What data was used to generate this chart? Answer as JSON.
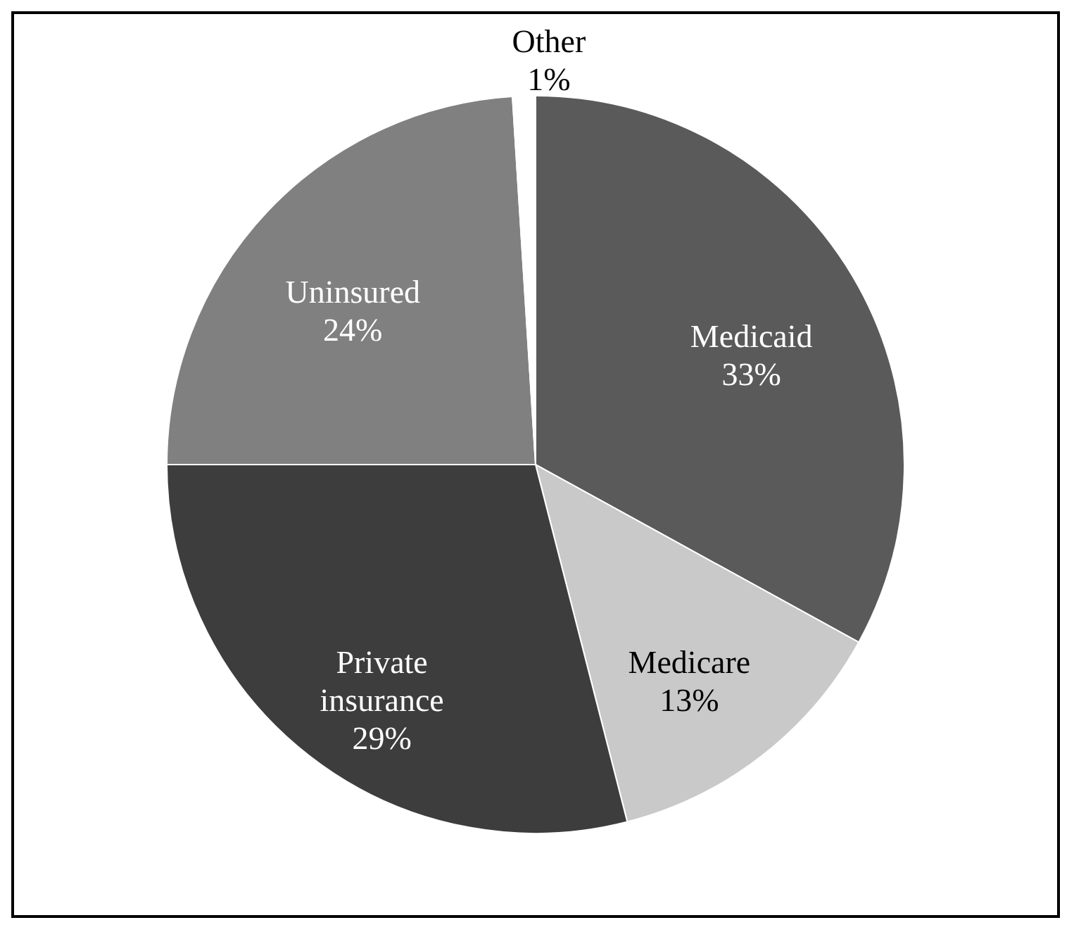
{
  "chart_data": {
    "type": "pie",
    "categories": [
      "Medicaid",
      "Medicare",
      "Private insurance",
      "Uninsured",
      "Other"
    ],
    "values": [
      33,
      13,
      29,
      24,
      1
    ],
    "colors": [
      "#5a5a5a",
      "#c9c9c9",
      "#3d3d3d",
      "#808080",
      "#ffffff"
    ],
    "value_labels": [
      "33%",
      "13%",
      "29%",
      "24%",
      "1%"
    ]
  }
}
